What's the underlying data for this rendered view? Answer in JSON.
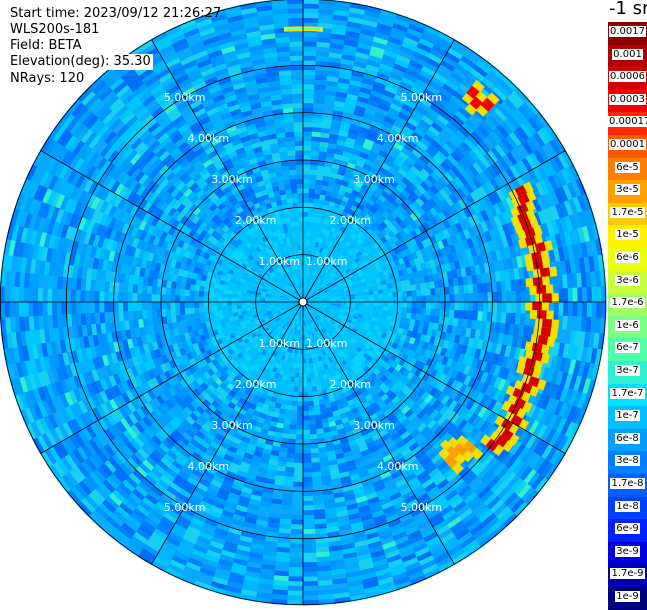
{
  "header": {
    "start_time": "Start time: 2023/09/12 21:26:27",
    "instrument": "WLS200s-181",
    "field": "Field: BETA",
    "elevation": "Elevation(deg): 35.30",
    "nrays": "NRays: 120"
  },
  "colorbar": {
    "unit": "-1 sr",
    "labels": [
      "0.0017",
      "0.001",
      "0.0006",
      "0.0003",
      "0.00017",
      "0.0001",
      "6e-5",
      "3e-5",
      "1.7e-5",
      "1e-5",
      "6e-6",
      "3e-6",
      "1.7e-6",
      "1e-6",
      "6e-7",
      "3e-7",
      "1.7e-7",
      "1e-7",
      "6e-8",
      "3e-8",
      "1.7e-8",
      "1e-8",
      "6e-9",
      "3e-9",
      "1.7e-9",
      "1e-9"
    ],
    "colors": [
      "#8b0000",
      "#b00000",
      "#d40000",
      "#f40000",
      "#ff2a00",
      "#ff5a00",
      "#ff8000",
      "#ffa000",
      "#ffc800",
      "#fff000",
      "#e8ff10",
      "#c8ff38",
      "#a0ff60",
      "#7cff84",
      "#50ffa8",
      "#30f0d0",
      "#00e0ff",
      "#00c0ff",
      "#00a0ff",
      "#0080ff",
      "#0060ff",
      "#0040ff",
      "#0020ff",
      "#0000e0",
      "#0000b0",
      "#000080"
    ]
  },
  "chart_data": {
    "type": "heatmap",
    "projection": "polar (PPI scan)",
    "field": "BETA",
    "elevation_deg": 35.3,
    "nrays": 120,
    "range_rings": [
      "1.00km",
      "2.00km",
      "3.00km",
      "4.00km",
      "5.00km"
    ],
    "ring_values_km": [
      1,
      2,
      3,
      4,
      5
    ],
    "azimuth_spokes_deg": [
      0,
      30,
      60,
      90,
      120,
      150,
      180,
      210,
      240,
      270,
      300,
      330
    ],
    "max_range_km": 6.4,
    "background_level": "1e-7",
    "high_returns": [
      {
        "azimuth_from_deg": 38,
        "azimuth_to_deg": 44,
        "range_from_km": 5.4,
        "range_to_km": 5.9,
        "level": "0.0003"
      },
      {
        "azimuth_from_deg": 62,
        "azimuth_to_deg": 128,
        "range_from_km": 4.8,
        "range_to_km": 5.3,
        "level": "0.0006"
      },
      {
        "azimuth_from_deg": 130,
        "azimuth_to_deg": 138,
        "range_from_km": 4.3,
        "range_to_km": 4.9,
        "level": "3e-5"
      },
      {
        "azimuth_from_deg": 356,
        "azimuth_to_deg": 4,
        "range_from_km": 5.6,
        "range_to_km": 5.7,
        "level": "1e-6"
      }
    ]
  }
}
